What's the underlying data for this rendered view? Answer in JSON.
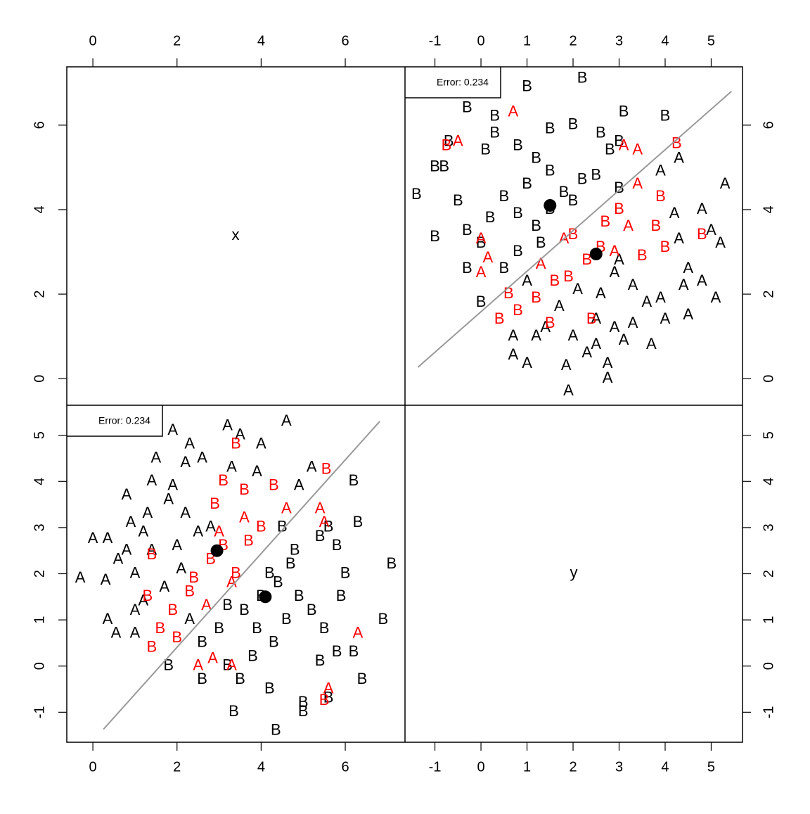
{
  "variables": [
    "x",
    "y"
  ],
  "chart_data": [
    {
      "type": "scatter",
      "error_label": "Error: 0.234",
      "xlim": [
        -0.62,
        7.42
      ],
      "ylim": [
        -1.65,
        5.65
      ],
      "xticks": [
        0,
        2,
        4,
        6
      ],
      "yticks": [
        -1,
        0,
        1,
        2,
        3,
        4,
        5
      ],
      "series": [
        {
          "name": "A",
          "color": "#000000",
          "x": [
            -0.3,
            0.3,
            0.0,
            0.35,
            0.35,
            0.55,
            1.0,
            0.6,
            0.8,
            0.8,
            0.9,
            1.0,
            1.2,
            1.3,
            1.4,
            1.5,
            1.8,
            1.9,
            2.2,
            2.3,
            2.6,
            3.2,
            3.5,
            4.0,
            4.6,
            5.2,
            4.9,
            3.9,
            1.2,
            1.4,
            2.0,
            2.2,
            2.5,
            2.8,
            3.3,
            1.9,
            1.0,
            2.3,
            1.7,
            2.1
          ],
          "values": [
            1.9,
            1.85,
            2.75,
            2.75,
            1.0,
            0.7,
            0.7,
            2.3,
            2.5,
            3.7,
            3.1,
            2.0,
            2.9,
            3.3,
            4.0,
            4.5,
            3.6,
            5.1,
            4.4,
            4.8,
            4.5,
            5.2,
            5.0,
            4.8,
            5.3,
            4.3,
            3.9,
            4.2,
            1.4,
            2.5,
            2.6,
            3.3,
            2.9,
            3.0,
            4.3,
            3.9,
            1.2,
            1.0,
            1.7,
            2.1
          ]
        },
        {
          "name": "B",
          "color": "#000000",
          "x": [
            7.1,
            6.9,
            6.3,
            6.2,
            6.4,
            6.2,
            6.0,
            5.9,
            5.8,
            5.6,
            5.4,
            5.0,
            5.0,
            4.2,
            3.35,
            4.35,
            2.6,
            1.8,
            3.2,
            3.8,
            4.3,
            4.6,
            4.9,
            4.0,
            3.6,
            3.2,
            4.2,
            4.8,
            5.4,
            5.6,
            5.8,
            4.5,
            3.0,
            2.6,
            3.9,
            4.4,
            5.2,
            5.5,
            3.5,
            4.7
          ],
          "values": [
            2.2,
            1.0,
            3.1,
            4.0,
            -0.3,
            0.3,
            2.0,
            1.5,
            0.3,
            -0.7,
            0.1,
            -0.8,
            -1.0,
            -0.5,
            -1.0,
            -1.4,
            -0.3,
            0.0,
            0.0,
            0.2,
            0.5,
            1.0,
            1.5,
            1.5,
            1.2,
            1.3,
            2.0,
            2.5,
            2.8,
            3.0,
            2.6,
            3.0,
            0.8,
            0.5,
            0.8,
            1.8,
            1.2,
            0.8,
            -0.3,
            2.2
          ]
        },
        {
          "name": "A",
          "color": "#ff0000",
          "x": [
            5.6,
            6.3,
            2.5,
            2.85,
            3.3,
            5.5,
            5.4,
            3.0,
            3.6,
            4.6,
            3.3,
            2.7
          ],
          "values": [
            -0.5,
            0.7,
            0.0,
            0.15,
            0.0,
            3.1,
            3.4,
            2.9,
            3.2,
            3.4,
            1.8,
            1.3
          ]
        },
        {
          "name": "B",
          "color": "#ff0000",
          "x": [
            5.55,
            3.4,
            3.6,
            4.3,
            1.4,
            1.3,
            1.6,
            1.4,
            2.0,
            2.4,
            2.8,
            3.1,
            3.4,
            3.7,
            4.0,
            2.9,
            5.5,
            2.3,
            1.9,
            3.1
          ],
          "values": [
            4.25,
            4.8,
            3.8,
            3.9,
            2.4,
            1.5,
            0.8,
            0.4,
            0.6,
            1.9,
            2.3,
            2.6,
            2.0,
            2.7,
            3.0,
            3.5,
            -0.75,
            1.6,
            1.2,
            4.0
          ]
        }
      ],
      "centroids": {
        "x": [
          2.95,
          4.1
        ],
        "y": [
          2.5,
          1.5
        ]
      },
      "boundary": {
        "x": [
          0.25,
          6.82
        ],
        "y": [
          -1.37,
          5.3
        ]
      }
    },
    {
      "type": "scatter",
      "error_label": "Error: 0.234",
      "xlim": [
        -1.65,
        5.68
      ],
      "ylim": [
        -0.63,
        7.38
      ],
      "xticks": [
        -1,
        0,
        1,
        2,
        3,
        4,
        5
      ],
      "yticks": [
        0,
        2,
        4,
        6
      ],
      "series": [
        {
          "name": "A",
          "color": "#000000",
          "x": [
            1.9,
            1.85,
            2.75,
            2.75,
            1.0,
            0.7,
            0.7,
            2.3,
            2.5,
            3.7,
            3.1,
            2.0,
            2.9,
            3.3,
            4.0,
            4.5,
            3.6,
            5.1,
            4.4,
            4.8,
            4.5,
            5.2,
            5.0,
            4.8,
            5.3,
            4.3,
            3.9,
            4.2,
            1.4,
            2.5,
            2.6,
            3.3,
            2.9,
            3.0,
            4.3,
            3.9,
            1.2,
            1.0,
            1.7,
            2.1
          ],
          "values": [
            -0.3,
            0.3,
            0.0,
            0.35,
            0.35,
            0.55,
            1.0,
            0.6,
            0.8,
            0.8,
            0.9,
            1.0,
            1.2,
            1.3,
            1.4,
            1.5,
            1.8,
            1.9,
            2.2,
            2.3,
            2.6,
            3.2,
            3.5,
            4.0,
            4.6,
            5.2,
            4.9,
            3.9,
            1.2,
            1.4,
            2.0,
            2.2,
            2.5,
            2.8,
            3.3,
            1.9,
            1.0,
            2.3,
            1.7,
            2.1
          ]
        },
        {
          "name": "B",
          "color": "#000000",
          "x": [
            2.2,
            1.0,
            3.1,
            4.0,
            -0.3,
            0.3,
            2.0,
            1.5,
            0.3,
            -0.7,
            0.1,
            -0.8,
            -1.0,
            -0.5,
            -1.0,
            -1.4,
            -0.3,
            0.0,
            0.0,
            0.2,
            0.5,
            1.0,
            1.5,
            1.5,
            1.2,
            1.3,
            2.0,
            2.5,
            2.8,
            3.0,
            2.6,
            3.0,
            0.8,
            0.5,
            0.8,
            1.8,
            1.2,
            0.8,
            -0.3,
            2.2
          ],
          "values": [
            7.1,
            6.9,
            6.3,
            6.2,
            6.4,
            6.2,
            6.0,
            5.9,
            5.8,
            5.6,
            5.4,
            5.0,
            5.0,
            4.2,
            3.35,
            4.35,
            2.6,
            1.8,
            3.2,
            3.8,
            4.3,
            4.6,
            4.9,
            4.0,
            3.6,
            3.2,
            4.2,
            4.8,
            5.4,
            5.6,
            5.8,
            4.5,
            3.0,
            2.6,
            3.9,
            4.4,
            5.2,
            5.5,
            3.5,
            4.7
          ]
        },
        {
          "name": "A",
          "color": "#ff0000",
          "x": [
            -0.5,
            0.7,
            0.0,
            0.15,
            0.0,
            3.1,
            3.4,
            2.9,
            3.2,
            3.4,
            1.8,
            1.3
          ],
          "values": [
            5.6,
            6.3,
            2.5,
            2.85,
            3.3,
            5.5,
            5.4,
            3.0,
            3.6,
            4.6,
            3.3,
            2.7
          ]
        },
        {
          "name": "B",
          "color": "#ff0000",
          "x": [
            4.25,
            4.8,
            3.8,
            3.9,
            2.4,
            1.5,
            0.8,
            0.4,
            0.6,
            1.9,
            2.3,
            2.6,
            2.0,
            2.7,
            3.0,
            3.5,
            -0.75,
            1.6,
            1.2,
            4.0
          ],
          "values": [
            5.55,
            3.4,
            3.6,
            4.3,
            1.4,
            1.3,
            1.6,
            1.4,
            2.0,
            2.4,
            2.8,
            3.1,
            3.4,
            3.7,
            4.0,
            2.9,
            5.5,
            2.3,
            1.9,
            3.1
          ]
        }
      ],
      "centroids": {
        "x": [
          2.5,
          1.5
        ],
        "y": [
          2.95,
          4.1
        ]
      },
      "boundary": {
        "x": [
          -1.37,
          5.44
        ],
        "y": [
          0.27,
          6.8
        ]
      }
    }
  ]
}
